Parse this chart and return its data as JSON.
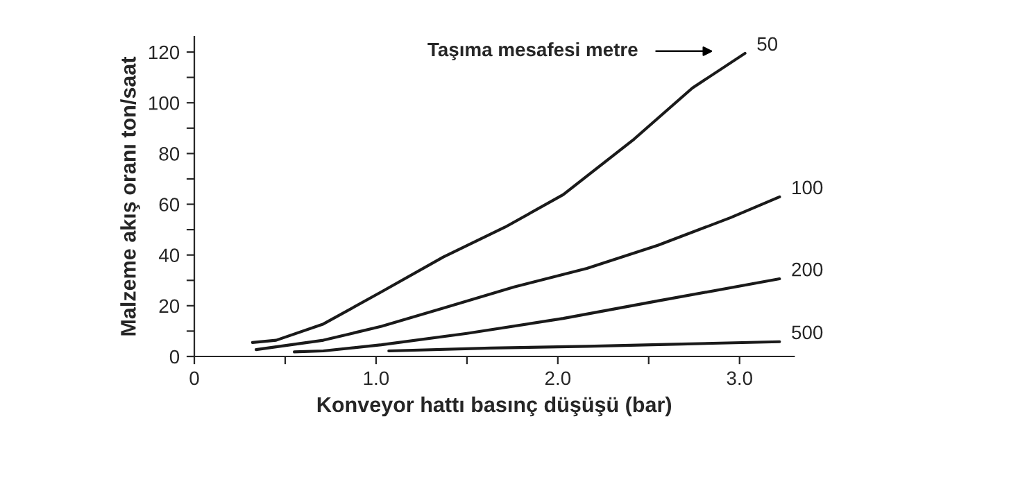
{
  "chart_data": {
    "type": "line",
    "xlabel": "Konveyor hattı basınç düşüşü (bar)",
    "ylabel": "Malzeme akış oranı ton/saat",
    "annotations": [
      "Taşıma mesafesi metre"
    ],
    "xlim": [
      0,
      3.3
    ],
    "xticks": [
      0,
      {
        "value": 0.5,
        "label": null
      },
      {
        "value": 1.0,
        "label": "1.0"
      },
      {
        "value": 1.5,
        "label": null
      },
      {
        "value": 2.0,
        "label": "2.0"
      },
      {
        "value": 2.5,
        "label": null
      },
      {
        "value": 3.0,
        "label": "3.0"
      }
    ],
    "ylim": [
      0,
      126
    ],
    "yticks": [
      0,
      {
        "value": 10,
        "label": null
      },
      20,
      {
        "value": 30,
        "label": null
      },
      40,
      {
        "value": 50,
        "label": null
      },
      60,
      {
        "value": 70,
        "label": null
      },
      80,
      {
        "value": 90,
        "label": null
      },
      100,
      {
        "value": 110,
        "label": null
      },
      120
    ],
    "grid": false,
    "legend": false,
    "marker": "none",
    "line_style": "solid",
    "series": [
      {
        "name": "50",
        "color": "#1a1a1a",
        "x": [
          0.32,
          0.45,
          0.71,
          1.03,
          1.37,
          1.71,
          2.03,
          2.42,
          2.74,
          3.03
        ],
        "values": [
          5.5,
          6.4,
          12.8,
          25.5,
          39.2,
          51,
          63.8,
          85.7,
          105.8,
          119.5
        ]
      },
      {
        "name": "100",
        "color": "#1a1a1a",
        "x": [
          0.34,
          0.71,
          1.03,
          1.37,
          1.76,
          2.16,
          2.55,
          2.95,
          3.22
        ],
        "values": [
          2.7,
          6.4,
          11.9,
          19.1,
          27.4,
          34.7,
          43.8,
          54.7,
          62.9
        ]
      },
      {
        "name": "200",
        "color": "#1a1a1a",
        "x": [
          0.55,
          0.71,
          1.03,
          1.5,
          2.03,
          2.55,
          3.22
        ],
        "values": [
          1.8,
          2.2,
          4.6,
          9.1,
          15,
          21.9,
          30.6
        ]
      },
      {
        "name": "500",
        "color": "#1a1a1a",
        "x": [
          1.07,
          1.63,
          2.16,
          2.68,
          3.22
        ],
        "values": [
          2.2,
          3.3,
          4,
          4.9,
          5.8
        ]
      }
    ]
  }
}
